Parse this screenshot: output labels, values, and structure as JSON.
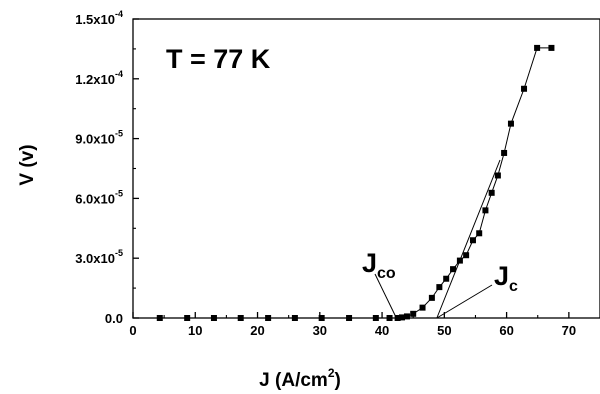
{
  "chart_data": {
    "type": "scatter",
    "xlabel_main": "J (A/cm",
    "xlabel_sup": "2",
    "xlabel_tail": ")",
    "ylabel": "V (v)",
    "xlim": [
      0,
      75
    ],
    "ylim": [
      0,
      0.00015
    ],
    "x_ticks": [
      0,
      10,
      20,
      30,
      40,
      50,
      60,
      70
    ],
    "x_tick_labels": [
      "0",
      "10",
      "20",
      "30",
      "40",
      "50",
      "60",
      "70"
    ],
    "y_ticks": [
      0,
      3e-05,
      6e-05,
      9e-05,
      0.00012,
      0.00015
    ],
    "y_tick_labels": [
      {
        "base": "0.0",
        "exp": ""
      },
      {
        "base": "3.0x10",
        "exp": "-5"
      },
      {
        "base": "6.0x10",
        "exp": "-5"
      },
      {
        "base": "9.0x10",
        "exp": "-5"
      },
      {
        "base": "1.2x10",
        "exp": "-4"
      },
      {
        "base": "1.5x10",
        "exp": "-4"
      }
    ],
    "series": [
      {
        "x": [
          4.3,
          8.7,
          13.0,
          17.3,
          21.7,
          26.0,
          30.3,
          34.7,
          39.0,
          41.2,
          42.5,
          43.2,
          44.0,
          45.0,
          46.5,
          48.0,
          49.2,
          50.3,
          51.4,
          52.5,
          53.5,
          54.6,
          55.6,
          56.6,
          57.6,
          58.6,
          59.6,
          60.7,
          62.8,
          64.9,
          67.2
        ],
        "y": [
          0,
          0,
          0,
          0,
          0,
          0,
          0,
          0,
          0,
          0,
          0,
          3e-07,
          8e-07,
          2.1e-06,
          5.2e-06,
          1.01e-05,
          1.55e-05,
          1.97e-05,
          2.45e-05,
          2.88e-05,
          3.15e-05,
          3.9e-05,
          4.25e-05,
          5.4e-05,
          6.28e-05,
          7.15e-05,
          8.28e-05,
          9.75e-05,
          0.000115,
          0.0001355,
          0.0001355
        ]
      }
    ],
    "annotations": {
      "temp": "T = 77 K",
      "jco_main": "J",
      "jco_sub": "co",
      "jc_main": "J",
      "jc_sub": "c",
      "jco_x": 42.3,
      "jc_x": 48.8
    }
  }
}
